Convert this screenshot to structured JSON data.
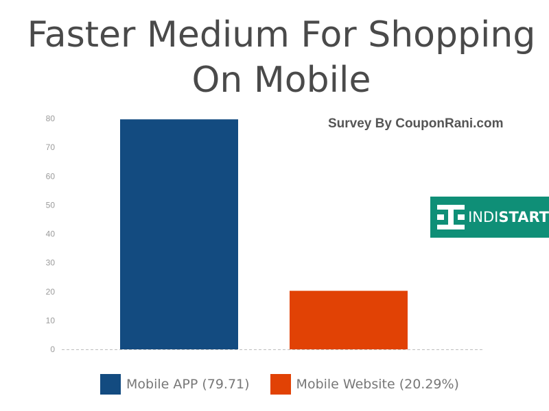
{
  "chart_data": {
    "type": "bar",
    "title_lines": [
      "Faster Medium For Shopping",
      "On Mobile"
    ],
    "subtitle": "Survey By CouponRani.com",
    "categories": [
      "Mobile APP (79.71)",
      "Mobile Website (20.29%)"
    ],
    "values": [
      79.71,
      20.29
    ],
    "colors": [
      "#134b80",
      "#e14205"
    ],
    "ylim": [
      0,
      80
    ],
    "yticks": [
      0,
      10,
      20,
      30,
      40,
      50,
      60,
      70,
      80
    ],
    "xlabel": "",
    "ylabel": "",
    "grid": false,
    "legend_position": "bottom"
  },
  "logo": {
    "text_light": "INDI",
    "text_bold": "START",
    "color": "#0f8f77"
  }
}
